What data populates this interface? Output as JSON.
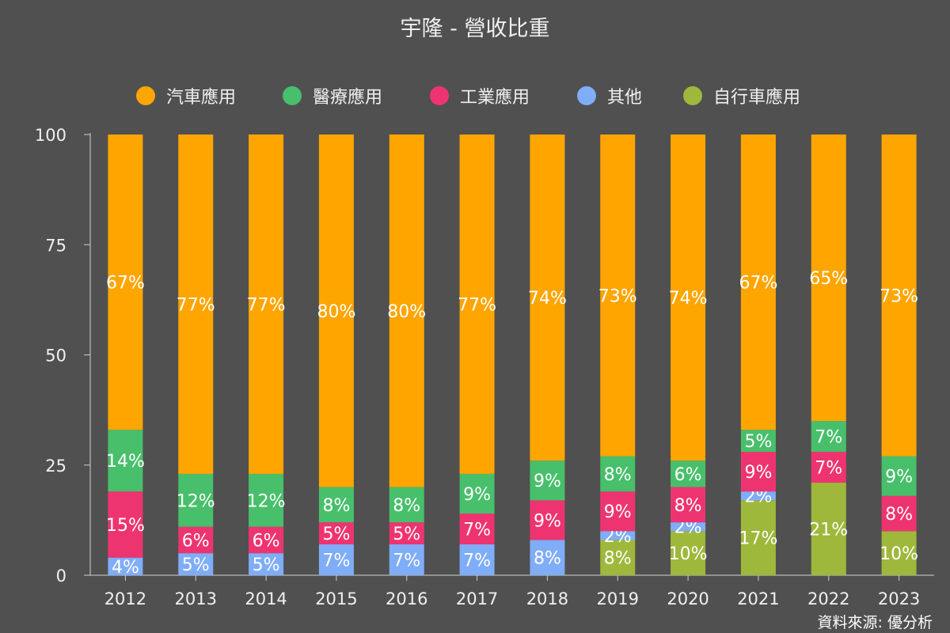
{
  "title": "宇隆 - 營收比重",
  "source": "資料來源: 優分析",
  "legend": [
    {
      "name": "汽車應用",
      "color": "#FFA500"
    },
    {
      "name": "醫療應用",
      "color": "#48BF6B"
    },
    {
      "name": "工業應用",
      "color": "#EE3470"
    },
    {
      "name": "其他",
      "color": "#7FADF8"
    },
    {
      "name": "自行車應用",
      "color": "#9EB83B"
    }
  ],
  "chart_data": {
    "type": "bar",
    "stacked": true,
    "title": "宇隆 - 營收比重",
    "categories": [
      "2012",
      "2013",
      "2014",
      "2015",
      "2016",
      "2017",
      "2018",
      "2019",
      "2020",
      "2021",
      "2022",
      "2023"
    ],
    "ylim": [
      0,
      100
    ],
    "yticks": [
      0,
      25,
      50,
      75,
      100
    ],
    "grid": false,
    "legend_position": "top",
    "series": [
      {
        "name": "自行車應用",
        "color": "#9EB83B",
        "values": [
          0,
          0,
          0,
          0,
          0,
          0,
          0,
          8,
          10,
          17,
          21,
          10
        ],
        "labels": [
          "",
          "",
          "",
          "",
          "",
          "",
          "",
          "8%",
          "10%",
          "17%",
          "21%",
          "10%"
        ]
      },
      {
        "name": "其他",
        "color": "#7FADF8",
        "values": [
          4,
          5,
          5,
          7,
          7,
          7,
          8,
          2,
          2,
          2,
          0,
          0
        ],
        "labels": [
          "4%",
          "5%",
          "5%",
          "7%",
          "7%",
          "7%",
          "8%",
          "2%",
          "2%",
          "2%",
          "",
          ""
        ]
      },
      {
        "name": "工業應用",
        "color": "#EE3470",
        "values": [
          15,
          6,
          6,
          5,
          5,
          7,
          9,
          9,
          8,
          9,
          7,
          8
        ],
        "labels": [
          "15%",
          "6%",
          "6%",
          "5%",
          "5%",
          "7%",
          "9%",
          "9%",
          "8%",
          "9%",
          "7%",
          "8%"
        ]
      },
      {
        "name": "醫療應用",
        "color": "#48BF6B",
        "values": [
          14,
          12,
          12,
          8,
          8,
          9,
          9,
          8,
          6,
          5,
          7,
          9
        ],
        "labels": [
          "14%",
          "12%",
          "12%",
          "8%",
          "8%",
          "9%",
          "9%",
          "8%",
          "6%",
          "5%",
          "7%",
          "9%"
        ]
      },
      {
        "name": "汽車應用",
        "color": "#FFA500",
        "values": [
          67,
          77,
          77,
          80,
          80,
          77,
          74,
          73,
          74,
          67,
          65,
          73
        ],
        "labels": [
          "67%",
          "77%",
          "77%",
          "80%",
          "80%",
          "77%",
          "74%",
          "73%",
          "74%",
          "67%",
          "65%",
          "73%"
        ]
      }
    ]
  }
}
